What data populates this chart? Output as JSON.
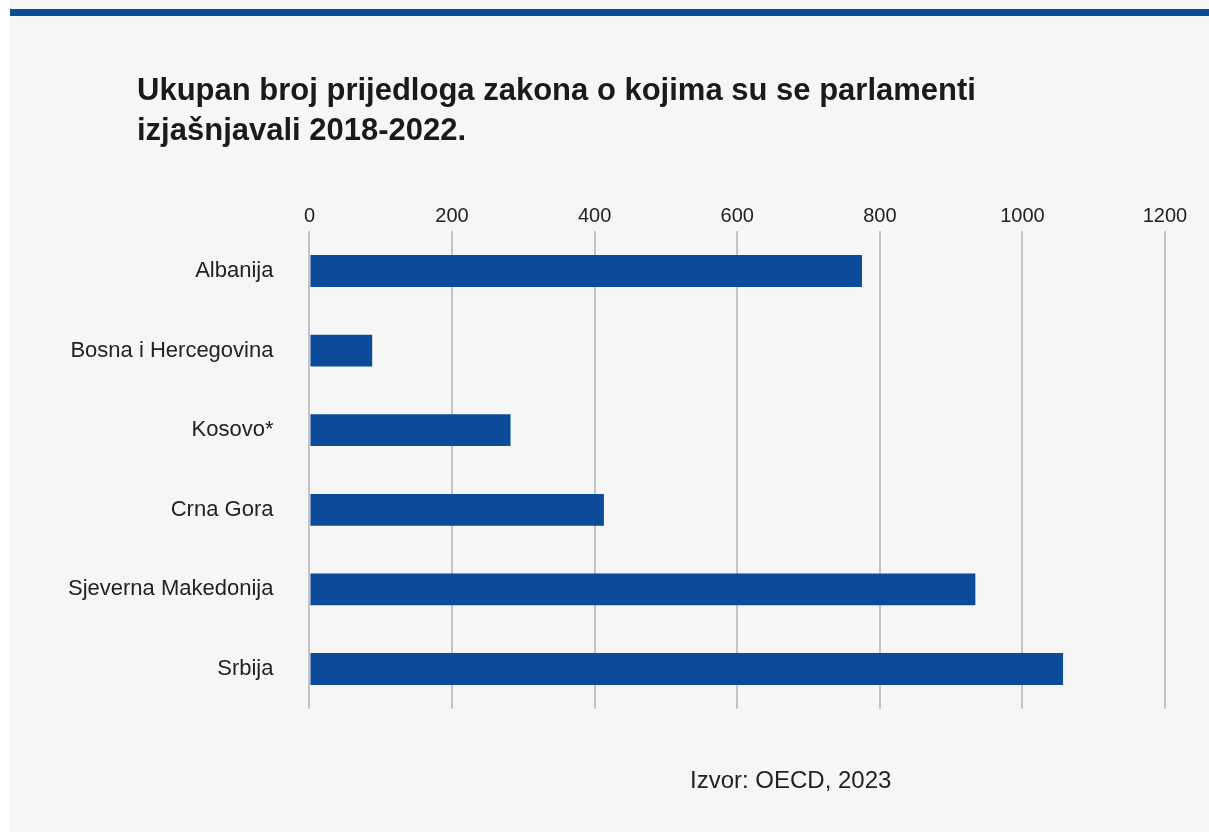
{
  "chart_data": {
    "type": "bar",
    "orientation": "horizontal",
    "title": "Ukupan broj prijedloga zakona o kojima su se parlamenti izjašnjavali 2018-2022.",
    "categories": [
      "Albanija",
      "Bosna i Hercegovina",
      "Kosovo*",
      "Crna Gora",
      "Sjeverna Makedonija",
      "Srbija"
    ],
    "values": [
      775,
      88,
      282,
      413,
      934,
      1057
    ],
    "color": "#0b4b99",
    "xlim": [
      0,
      1200
    ],
    "xticks": [
      0,
      200,
      400,
      600,
      800,
      1000,
      1200
    ],
    "grid": "x",
    "annotations": [
      "Izvor: OECD, 2023"
    ]
  }
}
